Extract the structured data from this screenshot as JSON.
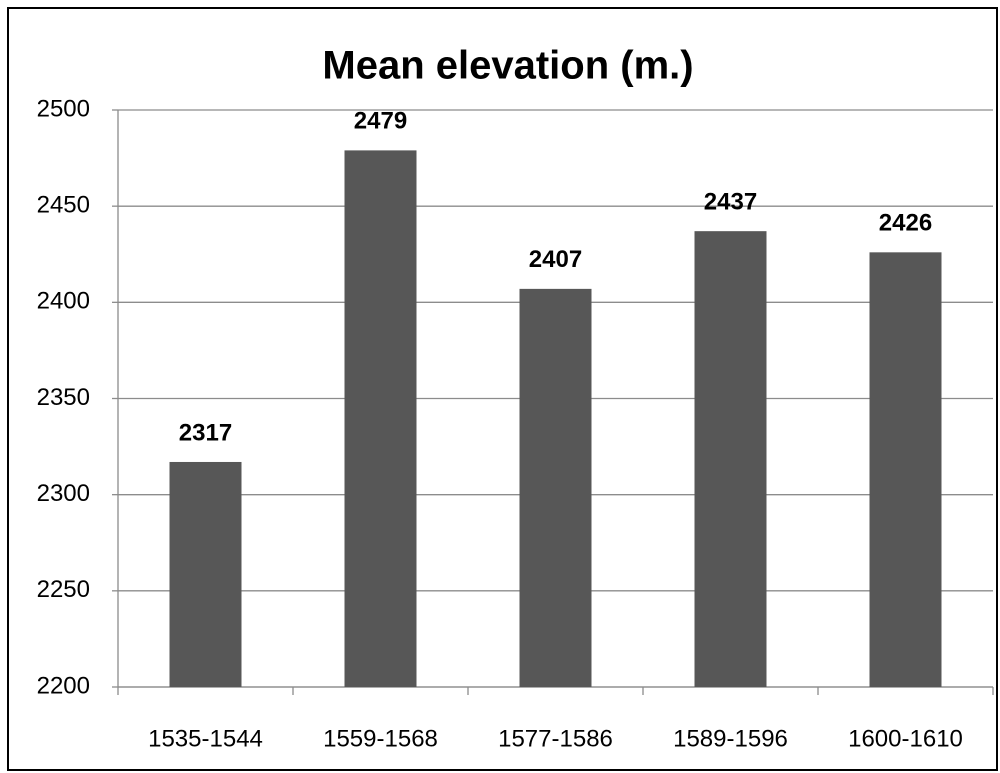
{
  "chart_data": {
    "type": "bar",
    "title": "Mean elevation (m.)",
    "categories": [
      "1535-1544",
      "1559-1568",
      "1577-1586",
      "1589-1596",
      "1600-1610"
    ],
    "values": [
      2317,
      2479,
      2407,
      2437,
      2426
    ],
    "color": "#575757",
    "ylim": [
      2200,
      2500
    ],
    "yticks": [
      2200,
      2250,
      2300,
      2350,
      2400,
      2450,
      2500
    ],
    "grid": true
  }
}
